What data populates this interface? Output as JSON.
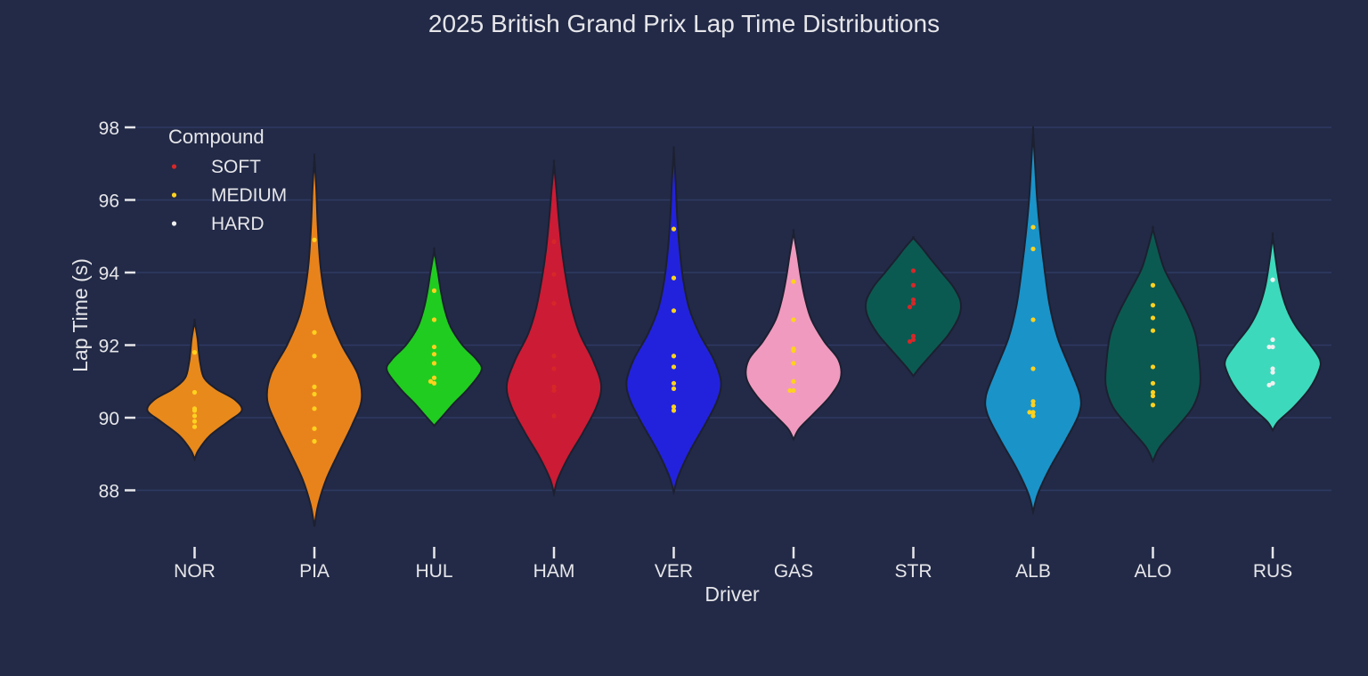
{
  "chart_data": {
    "type": "violin",
    "title": "2025 British Grand Prix Lap Time Distributions",
    "xlabel": "Driver",
    "ylabel": "Lap Time (s)",
    "ylim": [
      86.5,
      99.5
    ],
    "yticks": [
      88,
      90,
      92,
      94,
      96,
      98
    ],
    "ytick_labels": [
      "88",
      "90",
      "92",
      "94",
      "96",
      "98"
    ],
    "grid": true,
    "legend": {
      "title": "Compound",
      "placement": "top-left",
      "entries": [
        {
          "label": "SOFT",
          "color": "#d62728"
        },
        {
          "label": "MEDIUM",
          "color": "#ffd21f"
        },
        {
          "label": "HARD",
          "color": "#f0f0f0"
        }
      ]
    },
    "categories": [
      "NOR",
      "PIA",
      "HUL",
      "HAM",
      "VER",
      "GAS",
      "STR",
      "ALB",
      "ALO",
      "RUS"
    ],
    "violins": [
      {
        "driver": "NOR",
        "color": "#e8891c",
        "min": 88.85,
        "max": 92.65,
        "profile": [
          [
            88.85,
            0
          ],
          [
            89.1,
            0.08
          ],
          [
            89.5,
            0.32
          ],
          [
            89.9,
            0.72
          ],
          [
            90.2,
            1.0
          ],
          [
            90.5,
            0.85
          ],
          [
            90.8,
            0.45
          ],
          [
            91.1,
            0.2
          ],
          [
            91.5,
            0.12
          ],
          [
            91.8,
            0.09
          ],
          [
            92.2,
            0.06
          ],
          [
            92.65,
            0
          ]
        ]
      },
      {
        "driver": "PIA",
        "color": "#e8831c",
        "min": 87.0,
        "max": 97.15,
        "profile": [
          [
            87.0,
            0
          ],
          [
            87.6,
            0.08
          ],
          [
            88.3,
            0.25
          ],
          [
            89.0,
            0.5
          ],
          [
            89.8,
            0.8
          ],
          [
            90.5,
            1.0
          ],
          [
            91.2,
            0.92
          ],
          [
            92.0,
            0.58
          ],
          [
            92.8,
            0.32
          ],
          [
            93.5,
            0.2
          ],
          [
            94.3,
            0.12
          ],
          [
            95.3,
            0.07
          ],
          [
            96.3,
            0.04
          ],
          [
            97.15,
            0
          ]
        ]
      },
      {
        "driver": "HUL",
        "color": "#20cc20",
        "min": 89.78,
        "max": 94.6,
        "profile": [
          [
            89.78,
            0
          ],
          [
            90.0,
            0.15
          ],
          [
            90.4,
            0.42
          ],
          [
            90.8,
            0.72
          ],
          [
            91.3,
            1.0
          ],
          [
            91.6,
            0.9
          ],
          [
            92.0,
            0.6
          ],
          [
            92.5,
            0.35
          ],
          [
            93.0,
            0.22
          ],
          [
            93.5,
            0.14
          ],
          [
            94.0,
            0.08
          ],
          [
            94.6,
            0
          ]
        ]
      },
      {
        "driver": "HAM",
        "color": "#cc1b35",
        "min": 87.9,
        "max": 97.0,
        "profile": [
          [
            87.9,
            0
          ],
          [
            88.3,
            0.08
          ],
          [
            88.9,
            0.3
          ],
          [
            89.6,
            0.62
          ],
          [
            90.3,
            0.9
          ],
          [
            90.9,
            1.0
          ],
          [
            91.6,
            0.82
          ],
          [
            92.3,
            0.55
          ],
          [
            93.0,
            0.38
          ],
          [
            93.8,
            0.26
          ],
          [
            94.6,
            0.17
          ],
          [
            95.5,
            0.1
          ],
          [
            96.3,
            0.05
          ],
          [
            97.0,
            0
          ]
        ]
      },
      {
        "driver": "VER",
        "color": "#2222dd",
        "min": 87.95,
        "max": 97.35,
        "profile": [
          [
            87.95,
            0
          ],
          [
            88.4,
            0.1
          ],
          [
            89.1,
            0.35
          ],
          [
            89.9,
            0.7
          ],
          [
            90.5,
            0.93
          ],
          [
            91.0,
            1.0
          ],
          [
            91.6,
            0.85
          ],
          [
            92.3,
            0.55
          ],
          [
            93.0,
            0.33
          ],
          [
            93.8,
            0.2
          ],
          [
            94.7,
            0.12
          ],
          [
            95.6,
            0.07
          ],
          [
            96.5,
            0.04
          ],
          [
            97.35,
            0
          ]
        ]
      },
      {
        "driver": "GAS",
        "color": "#f09abf",
        "min": 89.4,
        "max": 95.1,
        "profile": [
          [
            89.4,
            0
          ],
          [
            89.7,
            0.12
          ],
          [
            90.1,
            0.42
          ],
          [
            90.6,
            0.78
          ],
          [
            91.1,
            1.0
          ],
          [
            91.6,
            0.95
          ],
          [
            92.1,
            0.65
          ],
          [
            92.7,
            0.38
          ],
          [
            93.3,
            0.24
          ],
          [
            93.9,
            0.15
          ],
          [
            94.5,
            0.08
          ],
          [
            95.1,
            0
          ]
        ]
      },
      {
        "driver": "STR",
        "color": "#0b5a52",
        "min": 91.15,
        "max": 94.95,
        "profile": [
          [
            91.15,
            0
          ],
          [
            91.4,
            0.15
          ],
          [
            91.8,
            0.42
          ],
          [
            92.3,
            0.75
          ],
          [
            92.8,
            0.97
          ],
          [
            93.2,
            1.0
          ],
          [
            93.6,
            0.85
          ],
          [
            94.0,
            0.6
          ],
          [
            94.4,
            0.35
          ],
          [
            94.7,
            0.17
          ],
          [
            94.95,
            0
          ]
        ]
      },
      {
        "driver": "ALB",
        "color": "#1a93c9",
        "min": 87.4,
        "max": 97.9,
        "profile": [
          [
            87.4,
            0
          ],
          [
            87.9,
            0.1
          ],
          [
            88.6,
            0.35
          ],
          [
            89.4,
            0.7
          ],
          [
            90.1,
            0.97
          ],
          [
            90.6,
            1.0
          ],
          [
            91.3,
            0.8
          ],
          [
            92.2,
            0.52
          ],
          [
            93.1,
            0.35
          ],
          [
            94.1,
            0.24
          ],
          [
            95.1,
            0.15
          ],
          [
            96.1,
            0.08
          ],
          [
            97.0,
            0.04
          ],
          [
            97.9,
            0
          ]
        ]
      },
      {
        "driver": "ALO",
        "color": "#0b5a52",
        "min": 88.8,
        "max": 95.2,
        "profile": [
          [
            88.8,
            0
          ],
          [
            89.2,
            0.15
          ],
          [
            89.8,
            0.55
          ],
          [
            90.3,
            0.85
          ],
          [
            90.9,
            1.0
          ],
          [
            91.6,
            0.98
          ],
          [
            92.3,
            0.9
          ],
          [
            92.9,
            0.72
          ],
          [
            93.5,
            0.48
          ],
          [
            94.1,
            0.24
          ],
          [
            94.7,
            0.1
          ],
          [
            95.2,
            0
          ]
        ]
      },
      {
        "driver": "RUS",
        "color": "#3dd9bd",
        "min": 89.65,
        "max": 95.0,
        "profile": [
          [
            89.65,
            0
          ],
          [
            89.9,
            0.12
          ],
          [
            90.3,
            0.45
          ],
          [
            90.8,
            0.78
          ],
          [
            91.3,
            0.98
          ],
          [
            91.6,
            1.0
          ],
          [
            92.0,
            0.8
          ],
          [
            92.5,
            0.5
          ],
          [
            93.0,
            0.3
          ],
          [
            93.6,
            0.16
          ],
          [
            94.3,
            0.07
          ],
          [
            95.0,
            0
          ]
        ]
      }
    ],
    "points": [
      {
        "driver": "NOR",
        "laps": [
          [
            91.8,
            "MEDIUM"
          ],
          [
            90.7,
            "MEDIUM"
          ],
          [
            90.25,
            "MEDIUM"
          ],
          [
            90.2,
            "MEDIUM"
          ],
          [
            90.05,
            "MEDIUM"
          ],
          [
            89.9,
            "MEDIUM"
          ],
          [
            89.75,
            "MEDIUM"
          ]
        ]
      },
      {
        "driver": "PIA",
        "laps": [
          [
            94.9,
            "MEDIUM"
          ],
          [
            92.35,
            "MEDIUM"
          ],
          [
            91.7,
            "MEDIUM"
          ],
          [
            90.85,
            "MEDIUM"
          ],
          [
            90.65,
            "MEDIUM"
          ],
          [
            90.25,
            "MEDIUM"
          ],
          [
            89.7,
            "MEDIUM"
          ],
          [
            89.35,
            "MEDIUM"
          ]
        ]
      },
      {
        "driver": "HUL",
        "laps": [
          [
            93.5,
            "MEDIUM"
          ],
          [
            92.7,
            "MEDIUM"
          ],
          [
            91.95,
            "MEDIUM"
          ],
          [
            91.75,
            "MEDIUM"
          ],
          [
            91.5,
            "MEDIUM"
          ],
          [
            91.1,
            "MEDIUM"
          ],
          [
            91.0,
            "MEDIUM"
          ],
          [
            90.95,
            "MEDIUM"
          ]
        ]
      },
      {
        "driver": "HAM",
        "laps": [
          [
            94.85,
            "SOFT"
          ],
          [
            93.95,
            "SOFT"
          ],
          [
            93.15,
            "SOFT"
          ],
          [
            91.7,
            "SOFT"
          ],
          [
            91.35,
            "SOFT"
          ],
          [
            90.85,
            "SOFT"
          ],
          [
            90.75,
            "SOFT"
          ],
          [
            90.05,
            "SOFT"
          ]
        ]
      },
      {
        "driver": "VER",
        "laps": [
          [
            95.2,
            "MEDIUM"
          ],
          [
            93.85,
            "MEDIUM"
          ],
          [
            92.95,
            "MEDIUM"
          ],
          [
            91.7,
            "MEDIUM"
          ],
          [
            91.4,
            "MEDIUM"
          ],
          [
            90.95,
            "MEDIUM"
          ],
          [
            90.8,
            "MEDIUM"
          ],
          [
            90.3,
            "MEDIUM"
          ],
          [
            90.2,
            "MEDIUM"
          ]
        ]
      },
      {
        "driver": "GAS",
        "laps": [
          [
            93.75,
            "MEDIUM"
          ],
          [
            92.7,
            "MEDIUM"
          ],
          [
            91.9,
            "MEDIUM"
          ],
          [
            91.85,
            "MEDIUM"
          ],
          [
            91.5,
            "MEDIUM"
          ],
          [
            91.0,
            "MEDIUM"
          ],
          [
            90.75,
            "MEDIUM"
          ],
          [
            90.75,
            "MEDIUM"
          ]
        ]
      },
      {
        "driver": "STR",
        "laps": [
          [
            94.05,
            "SOFT"
          ],
          [
            93.65,
            "SOFT"
          ],
          [
            93.25,
            "SOFT"
          ],
          [
            93.15,
            "SOFT"
          ],
          [
            93.05,
            "SOFT"
          ],
          [
            92.25,
            "SOFT"
          ],
          [
            92.15,
            "SOFT"
          ],
          [
            92.1,
            "SOFT"
          ]
        ]
      },
      {
        "driver": "ALB",
        "laps": [
          [
            95.25,
            "MEDIUM"
          ],
          [
            94.65,
            "MEDIUM"
          ],
          [
            92.7,
            "MEDIUM"
          ],
          [
            91.35,
            "MEDIUM"
          ],
          [
            90.45,
            "MEDIUM"
          ],
          [
            90.35,
            "MEDIUM"
          ],
          [
            90.15,
            "MEDIUM"
          ],
          [
            90.15,
            "MEDIUM"
          ],
          [
            90.05,
            "MEDIUM"
          ]
        ]
      },
      {
        "driver": "ALO",
        "laps": [
          [
            93.65,
            "MEDIUM"
          ],
          [
            93.1,
            "MEDIUM"
          ],
          [
            92.75,
            "MEDIUM"
          ],
          [
            92.4,
            "MEDIUM"
          ],
          [
            91.4,
            "MEDIUM"
          ],
          [
            90.95,
            "MEDIUM"
          ],
          [
            90.7,
            "MEDIUM"
          ],
          [
            90.6,
            "MEDIUM"
          ],
          [
            90.35,
            "MEDIUM"
          ]
        ]
      },
      {
        "driver": "RUS",
        "laps": [
          [
            93.8,
            "HARD"
          ],
          [
            92.15,
            "HARD"
          ],
          [
            91.95,
            "HARD"
          ],
          [
            91.95,
            "HARD"
          ],
          [
            91.35,
            "HARD"
          ],
          [
            91.25,
            "HARD"
          ],
          [
            90.95,
            "HARD"
          ],
          [
            90.9,
            "HARD"
          ]
        ]
      }
    ]
  },
  "colors": {
    "background": "#222a47",
    "grid": "#2f3a63",
    "text": "#e6e6ea",
    "violin_outline": "#1c2030"
  }
}
